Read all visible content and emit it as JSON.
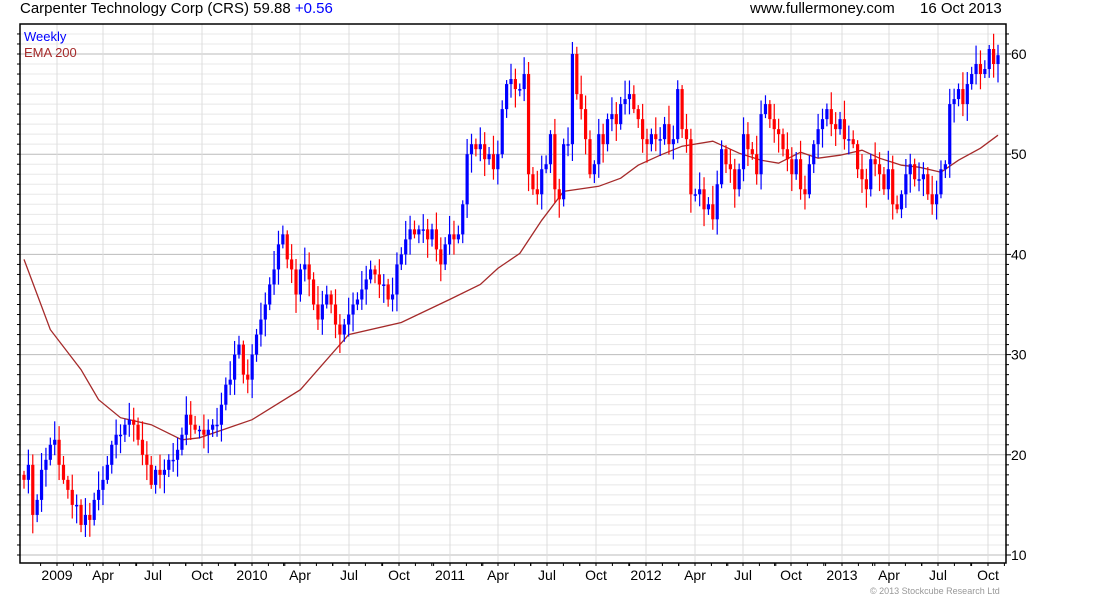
{
  "header": {
    "title": "Carpenter Technology Corp (CRS) 59.88",
    "change": "+0.56",
    "site": "www.fullermoney.com",
    "date": "16 Oct 2013"
  },
  "footer": {
    "copyright": "© 2013 Stockcube Research Ltd"
  },
  "colors": {
    "up": "#0000ff",
    "down": "#ff0000",
    "ema": "#a52a2a"
  },
  "chart_data": {
    "type": "candlestick",
    "title": "Carpenter Technology Corp (CRS) 59.88 +0.56",
    "legend": [
      "Weekly",
      "EMA 200"
    ],
    "legend_position": "top-left",
    "ylim": [
      10,
      62
    ],
    "y_ticks": [
      10,
      20,
      30,
      40,
      50,
      60
    ],
    "x_ticks": [
      "2009",
      "Apr",
      "Jul",
      "Oct",
      "2010",
      "Apr",
      "Jul",
      "Oct",
      "2011",
      "Apr",
      "Jul",
      "Oct",
      "2012",
      "Apr",
      "Jul",
      "Oct",
      "2013",
      "Apr",
      "Jul",
      "Oct"
    ],
    "grid": true,
    "first_open": 18,
    "weekly_close": [
      17.5,
      19,
      14,
      15.5,
      18.5,
      19.5,
      21,
      21.5,
      19,
      17.5,
      16.5,
      15,
      15,
      13,
      14,
      13.5,
      15.5,
      16.5,
      17.5,
      19,
      21,
      22,
      22,
      23,
      23.5,
      23,
      21.5,
      20,
      19,
      17,
      18.5,
      18,
      18.5,
      19.5,
      19.5,
      20.5,
      22,
      24,
      23,
      22.5,
      22.5,
      22,
      22.5,
      23,
      23,
      25,
      27,
      27.5,
      30,
      31,
      28,
      27.5,
      30,
      32,
      33.5,
      35,
      37,
      38.5,
      41,
      42,
      39.5,
      38.5,
      36,
      38.5,
      39,
      37.5,
      35,
      33.5,
      35,
      36,
      35,
      33,
      32,
      33,
      34,
      35,
      35.5,
      36.5,
      37.5,
      38.5,
      38,
      37,
      37,
      35.5,
      36,
      39,
      40,
      41.5,
      42.5,
      42,
      42.5,
      42.5,
      41.5,
      42.5,
      40.5,
      39,
      41,
      42,
      41.5,
      42,
      45,
      50,
      51,
      50.5,
      51,
      49.5,
      50,
      48.5,
      50,
      54.5,
      57,
      57.5,
      56.5,
      56.5,
      58,
      48,
      46.5,
      46,
      48.5,
      49,
      52,
      46.5,
      45.5,
      51,
      51,
      60,
      56,
      54.5,
      51.5,
      48,
      49,
      52,
      51,
      53.5,
      54,
      53,
      55,
      55.5,
      56,
      54.5,
      53.5,
      51.5,
      51,
      52,
      51.5,
      51.5,
      53,
      51,
      51.5,
      56.5,
      52.5,
      51.5,
      46,
      46,
      46.5,
      44.5,
      45,
      43.5,
      47,
      50.5,
      49,
      48.5,
      46.5,
      48.5,
      52,
      50.5,
      50,
      48,
      54,
      55,
      53.5,
      52.5,
      52,
      50.5,
      49.5,
      48,
      49.5,
      46.5,
      46,
      49,
      51,
      52.5,
      53.5,
      54.5,
      53,
      52.5,
      53.5,
      51.5,
      51.5,
      51,
      48.5,
      47.5,
      46.5,
      49.5,
      49,
      48,
      46.5,
      48.5,
      45,
      44.5,
      46,
      48,
      49,
      47.5,
      47.5,
      48,
      46,
      45,
      46,
      48.5,
      49,
      55,
      55.5,
      56.5,
      55,
      57,
      58,
      59,
      58,
      58.5,
      60.5,
      59,
      59.88
    ],
    "ema_200": [
      [
        0,
        39.5
      ],
      [
        6,
        32.5
      ],
      [
        13,
        28.5
      ],
      [
        17,
        25.5
      ],
      [
        22,
        23.7
      ],
      [
        29,
        23
      ],
      [
        36,
        21.5
      ],
      [
        40,
        21.7
      ],
      [
        52,
        23.5
      ],
      [
        63,
        26.5
      ],
      [
        74,
        32
      ],
      [
        86,
        33.2
      ],
      [
        97,
        35.5
      ],
      [
        104,
        37
      ],
      [
        108,
        38.6
      ],
      [
        113,
        40.1
      ],
      [
        118,
        43.4
      ],
      [
        123,
        46.3
      ],
      [
        131,
        46.8
      ],
      [
        136,
        47.6
      ],
      [
        140,
        48.9
      ],
      [
        145,
        49.9
      ],
      [
        150,
        50.8
      ],
      [
        157,
        51.3
      ],
      [
        163,
        50.1
      ],
      [
        168,
        49.4
      ],
      [
        172,
        49.1
      ],
      [
        177,
        50.2
      ],
      [
        181,
        49.6
      ],
      [
        186,
        49.9
      ],
      [
        191,
        50.4
      ],
      [
        195,
        49.6
      ],
      [
        200,
        48.9
      ],
      [
        204,
        48.7
      ],
      [
        209,
        48.2
      ],
      [
        213,
        49.4
      ],
      [
        218,
        50.6
      ],
      [
        222,
        51.9
      ]
    ]
  }
}
